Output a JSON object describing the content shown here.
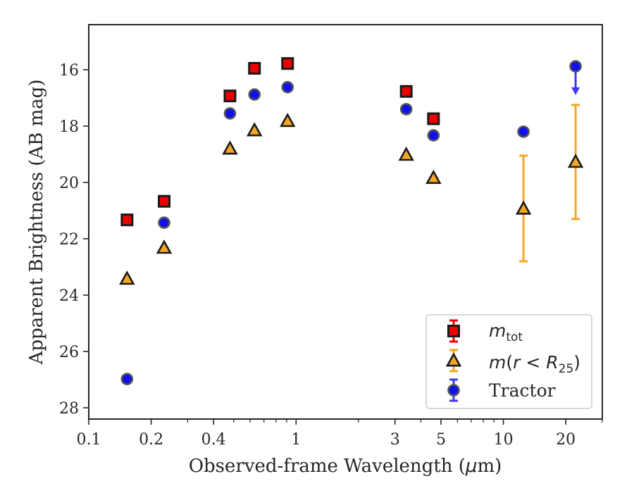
{
  "chart_data": {
    "type": "scatter",
    "title": "",
    "xlabel": "Observed-frame Wavelength (",
    "xlabel_mu": "μ",
    "xlabel_unit": "m)",
    "ylabel": "Apparent Brightness (AB mag)",
    "x_scale": "log",
    "y_inverted": true,
    "xlim": [
      0.1,
      30
    ],
    "ylim": [
      28.4,
      14.4
    ],
    "x_ticks": [
      {
        "value": 0.1,
        "label": "0.1"
      },
      {
        "value": 0.2,
        "label": "0.2"
      },
      {
        "value": 0.4,
        "label": "0.4"
      },
      {
        "value": 1,
        "label": "1"
      },
      {
        "value": 3,
        "label": "3"
      },
      {
        "value": 5,
        "label": "5"
      },
      {
        "value": 10,
        "label": "10"
      },
      {
        "value": 20,
        "label": "20"
      }
    ],
    "y_ticks": [
      {
        "value": 16,
        "label": "16"
      },
      {
        "value": 18,
        "label": "18"
      },
      {
        "value": 20,
        "label": "20"
      },
      {
        "value": 22,
        "label": "22"
      },
      {
        "value": 24,
        "label": "24"
      },
      {
        "value": 26,
        "label": "26"
      },
      {
        "value": 28,
        "label": "28"
      }
    ],
    "grid": false,
    "legend_position": "lower-right",
    "series": [
      {
        "key": "mtot",
        "legend_main": "m",
        "legend_sub": "tot",
        "marker": "square",
        "color": "#ee0000",
        "edge": "#1a1a1a",
        "points": [
          {
            "x": 0.153,
            "y": 21.33
          },
          {
            "x": 0.231,
            "y": 20.67
          },
          {
            "x": 0.48,
            "y": 16.93
          },
          {
            "x": 0.63,
            "y": 15.95
          },
          {
            "x": 0.91,
            "y": 15.78
          },
          {
            "x": 3.4,
            "y": 16.77
          },
          {
            "x": 4.6,
            "y": 17.74
          }
        ]
      },
      {
        "key": "mr25",
        "legend_main": "m",
        "legend_paren_open": "(",
        "legend_r": "r",
        "legend_lt": " < ",
        "legend_R": "R",
        "legend_sub": "25",
        "legend_paren_close": ")",
        "marker": "triangle",
        "color": "#f5a623",
        "edge": "#1a1a1a",
        "errorbar_color": "#f5a623",
        "points": [
          {
            "x": 0.153,
            "y": 23.42
          },
          {
            "x": 0.231,
            "y": 22.32
          },
          {
            "x": 0.48,
            "y": 18.8
          },
          {
            "x": 0.63,
            "y": 18.15
          },
          {
            "x": 0.91,
            "y": 17.82
          },
          {
            "x": 3.4,
            "y": 19.02
          },
          {
            "x": 4.6,
            "y": 19.84
          },
          {
            "x": 12.5,
            "y": 20.93,
            "err_low": 19.05,
            "err_high": 22.8
          },
          {
            "x": 22.3,
            "y": 19.27,
            "err_low": 17.25,
            "err_high": 21.3
          }
        ]
      },
      {
        "key": "tractor",
        "legend_main": "Tractor",
        "marker": "circle",
        "color": "#1010ee",
        "edge": "#555555",
        "errorbar_color": "#3a3aee",
        "points": [
          {
            "x": 0.153,
            "y": 26.98
          },
          {
            "x": 0.231,
            "y": 21.43
          },
          {
            "x": 0.48,
            "y": 17.55
          },
          {
            "x": 0.63,
            "y": 16.88
          },
          {
            "x": 0.91,
            "y": 16.62
          },
          {
            "x": 3.4,
            "y": 17.4
          },
          {
            "x": 4.6,
            "y": 18.33
          },
          {
            "x": 12.5,
            "y": 18.2
          },
          {
            "x": 22.3,
            "y": 15.88,
            "upper_limit_to": 16.85
          }
        ]
      }
    ]
  }
}
